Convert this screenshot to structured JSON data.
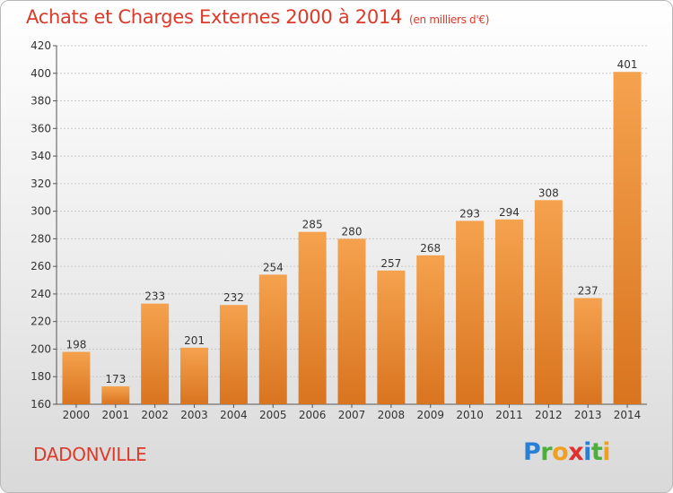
{
  "header": {
    "title": "Achats et Charges Externes 2000 à 2014",
    "subtitle": "(en milliers d'€)"
  },
  "footer": {
    "town": "DADONVILLE",
    "logo": {
      "letters": [
        "P",
        "r",
        "o",
        "x",
        "i",
        "t",
        "i"
      ],
      "colors": [
        "#2a7fd4",
        "#4cae3c",
        "#f0a020",
        "#e03030",
        "#2a7fd4",
        "#4cae3c",
        "#f0a020"
      ]
    }
  },
  "colors": {
    "bar_top": "#f5a24e",
    "bar_bottom": "#d9741f",
    "grid": "#c8c8c8",
    "axis": "#555555",
    "accent": "#dd3a2a"
  },
  "chart_data": {
    "type": "bar",
    "title": "Achats et Charges Externes 2000 à 2014",
    "xlabel": "",
    "ylabel": "",
    "categories": [
      "2000",
      "2001",
      "2002",
      "2003",
      "2004",
      "2005",
      "2006",
      "2007",
      "2008",
      "2009",
      "2010",
      "2011",
      "2012",
      "2013",
      "2014"
    ],
    "values": [
      198,
      173,
      233,
      201,
      232,
      254,
      285,
      280,
      257,
      268,
      293,
      294,
      308,
      237,
      401
    ],
    "ylim": [
      160,
      420
    ],
    "yticks": [
      160,
      180,
      200,
      220,
      240,
      260,
      280,
      300,
      320,
      340,
      360,
      380,
      400,
      420
    ],
    "grid": true
  }
}
